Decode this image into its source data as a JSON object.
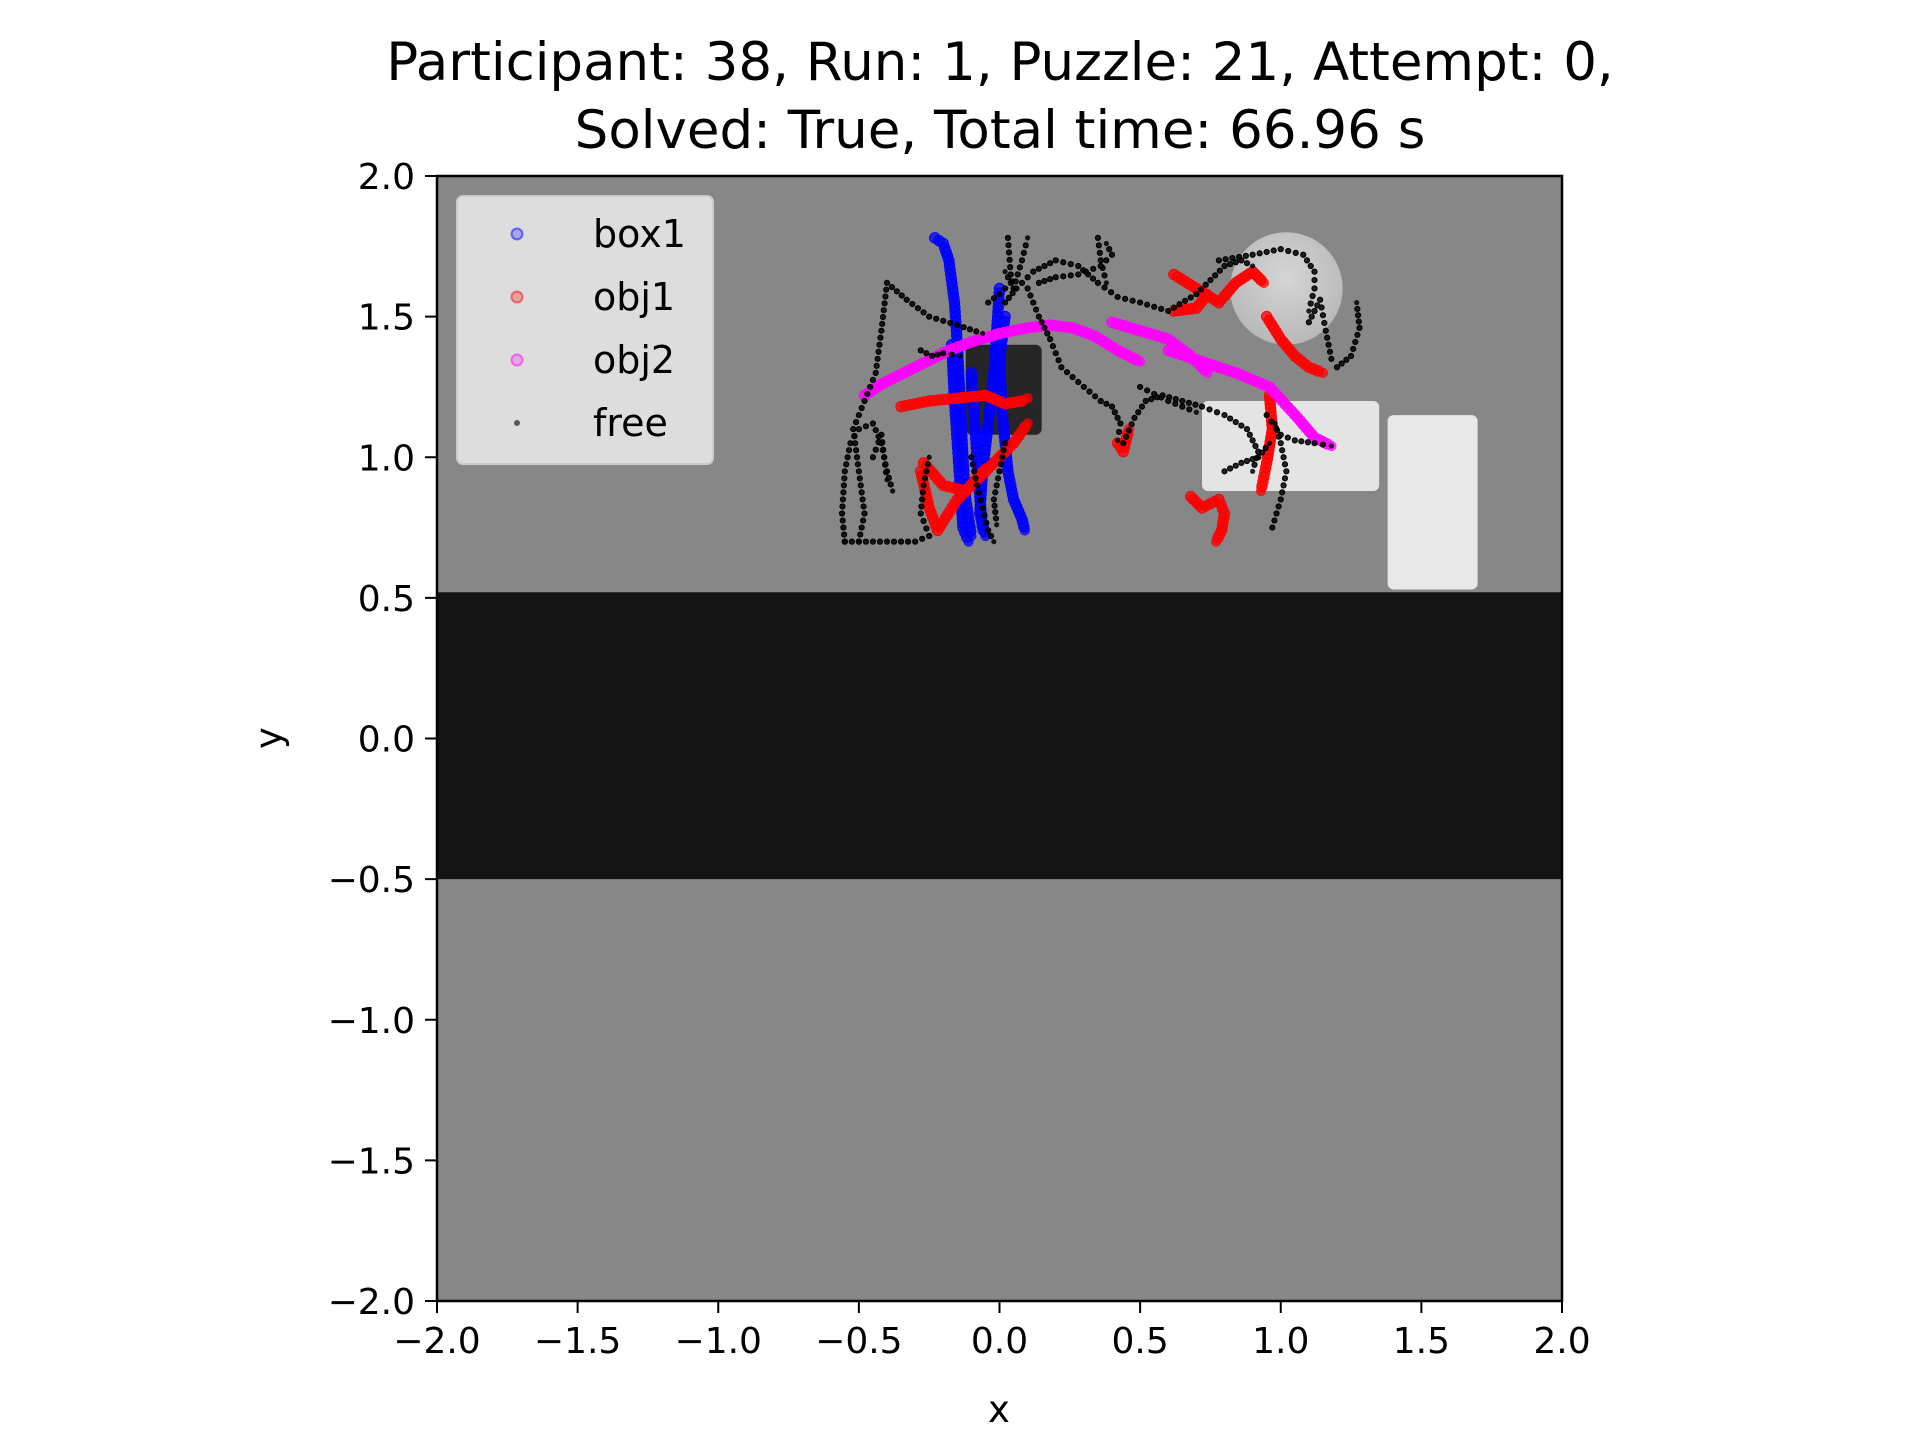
{
  "chart_data": {
    "type": "scatter",
    "title_lines": [
      "Participant: 38, Run: 1, Puzzle: 21, Attempt: 0,",
      "Solved: True, Total time: 66.96 s"
    ],
    "xlabel": "x",
    "ylabel": "y",
    "xlim": [
      -2.0,
      2.0
    ],
    "ylim": [
      -2.0,
      2.0
    ],
    "xticks": [
      "−2.0",
      "−1.5",
      "−1.0",
      "−0.5",
      "0.0",
      "0.5",
      "1.0",
      "1.5",
      "2.0"
    ],
    "yticks": [
      "2.0",
      "1.5",
      "1.0",
      "0.5",
      "0.0",
      "−0.5",
      "−1.0",
      "−1.5",
      "−2.0"
    ],
    "xtick_values": [
      -2.0,
      -1.5,
      -1.0,
      -0.5,
      0.0,
      0.5,
      1.0,
      1.5,
      2.0
    ],
    "ytick_values": [
      2.0,
      1.5,
      1.0,
      0.5,
      0.0,
      -0.5,
      -1.0,
      -1.5,
      -2.0
    ],
    "grid": false,
    "legend_position": "upper-left",
    "background": {
      "floor_color": "#878787",
      "table_band": {
        "y_range": [
          -0.5,
          0.52
        ],
        "color": "#131313"
      },
      "objects": [
        {
          "kind": "dark-box",
          "x_range": [
            -0.12,
            0.15
          ],
          "y_range": [
            1.08,
            1.4
          ],
          "color": "#262626"
        },
        {
          "kind": "light-box",
          "x_range": [
            0.72,
            1.35
          ],
          "y_range": [
            0.88,
            1.2
          ],
          "color": "#e4e4e4"
        },
        {
          "kind": "light-box",
          "x_range": [
            1.38,
            1.7
          ],
          "y_range": [
            0.53,
            1.15
          ],
          "color": "#e8e8e8"
        },
        {
          "kind": "light-disc",
          "center": [
            1.02,
            1.6
          ],
          "radius": 0.2,
          "color": "#cfcfcf"
        }
      ]
    },
    "series": [
      {
        "name": "box1",
        "color": "#0000ff",
        "marker": "circle",
        "paths": [
          [
            [
              -0.23,
              1.78
            ],
            [
              -0.2,
              1.76
            ],
            [
              -0.18,
              1.7
            ],
            [
              -0.16,
              1.55
            ],
            [
              -0.15,
              1.4
            ],
            [
              -0.14,
              1.2
            ],
            [
              -0.13,
              1.0
            ],
            [
              -0.12,
              0.85
            ],
            [
              -0.1,
              0.72
            ]
          ],
          [
            [
              -0.17,
              1.4
            ],
            [
              -0.16,
              1.2
            ],
            [
              -0.15,
              1.05
            ],
            [
              -0.14,
              0.9
            ],
            [
              -0.13,
              0.75
            ],
            [
              -0.11,
              0.7
            ]
          ],
          [
            [
              0.0,
              1.6
            ],
            [
              -0.01,
              1.45
            ],
            [
              -0.02,
              1.3
            ],
            [
              -0.04,
              1.12
            ],
            [
              -0.06,
              0.95
            ],
            [
              -0.07,
              0.8
            ],
            [
              -0.05,
              0.72
            ]
          ],
          [
            [
              0.02,
              1.5
            ],
            [
              0.0,
              1.35
            ],
            [
              0.01,
              1.15
            ],
            [
              0.03,
              0.95
            ],
            [
              0.05,
              0.85
            ],
            [
              0.08,
              0.78
            ],
            [
              0.09,
              0.74
            ]
          ],
          [
            [
              -0.1,
              1.3
            ],
            [
              -0.09,
              1.15
            ],
            [
              -0.08,
              1.0
            ],
            [
              -0.07,
              0.86
            ],
            [
              -0.06,
              0.74
            ]
          ]
        ]
      },
      {
        "name": "obj1",
        "color": "#ff0000",
        "marker": "circle",
        "paths": [
          [
            [
              -0.35,
              1.18
            ],
            [
              -0.25,
              1.2
            ],
            [
              -0.15,
              1.21
            ],
            [
              -0.05,
              1.22
            ],
            [
              0.02,
              1.19
            ],
            [
              0.08,
              1.2
            ],
            [
              0.1,
              1.21
            ]
          ],
          [
            [
              -0.28,
              0.95
            ],
            [
              -0.25,
              0.82
            ],
            [
              -0.22,
              0.74
            ],
            [
              -0.15,
              0.85
            ],
            [
              -0.05,
              0.95
            ],
            [
              0.05,
              1.05
            ],
            [
              0.1,
              1.12
            ]
          ],
          [
            [
              -0.27,
              0.98
            ],
            [
              -0.2,
              0.9
            ],
            [
              -0.12,
              0.88
            ],
            [
              -0.05,
              0.96
            ]
          ],
          [
            [
              0.42,
              1.05
            ],
            [
              0.44,
              1.02
            ],
            [
              0.46,
              1.1
            ]
          ],
          [
            [
              0.62,
              1.65
            ],
            [
              0.7,
              1.6
            ],
            [
              0.78,
              1.55
            ],
            [
              0.84,
              1.62
            ],
            [
              0.9,
              1.66
            ],
            [
              0.94,
              1.62
            ]
          ],
          [
            [
              0.62,
              1.52
            ],
            [
              0.7,
              1.53
            ],
            [
              0.74,
              1.58
            ]
          ],
          [
            [
              0.95,
              1.5
            ],
            [
              1.0,
              1.42
            ],
            [
              1.05,
              1.36
            ],
            [
              1.1,
              1.32
            ],
            [
              1.15,
              1.3
            ]
          ],
          [
            [
              0.96,
              1.22
            ],
            [
              0.97,
              1.1
            ],
            [
              0.95,
              0.98
            ],
            [
              0.93,
              0.88
            ]
          ],
          [
            [
              0.68,
              0.86
            ],
            [
              0.72,
              0.82
            ],
            [
              0.78,
              0.85
            ],
            [
              0.8,
              0.8
            ],
            [
              0.79,
              0.74
            ],
            [
              0.77,
              0.7
            ]
          ]
        ]
      },
      {
        "name": "obj2",
        "color": "#ff00ff",
        "marker": "circle",
        "paths": [
          [
            [
              -0.48,
              1.22
            ],
            [
              -0.42,
              1.26
            ],
            [
              -0.34,
              1.3
            ],
            [
              -0.26,
              1.34
            ],
            [
              -0.18,
              1.38
            ],
            [
              -0.1,
              1.41
            ],
            [
              0.0,
              1.44
            ],
            [
              0.1,
              1.46
            ],
            [
              0.18,
              1.47
            ],
            [
              0.26,
              1.46
            ],
            [
              0.34,
              1.43
            ],
            [
              0.42,
              1.38
            ],
            [
              0.5,
              1.34
            ]
          ],
          [
            [
              0.6,
              1.38
            ],
            [
              0.72,
              1.34
            ],
            [
              0.84,
              1.3
            ],
            [
              0.96,
              1.25
            ],
            [
              1.06,
              1.14
            ],
            [
              1.12,
              1.07
            ],
            [
              1.18,
              1.04
            ]
          ],
          [
            [
              0.4,
              1.48
            ],
            [
              0.5,
              1.45
            ],
            [
              0.6,
              1.42
            ],
            [
              0.68,
              1.36
            ],
            [
              0.74,
              1.3
            ]
          ]
        ]
      },
      {
        "name": "free",
        "color": "#000000",
        "marker": "dot",
        "paths": [
          [
            [
              -0.55,
              0.7
            ],
            [
              -0.5,
              0.7
            ],
            [
              -0.4,
              0.7
            ],
            [
              -0.3,
              0.7
            ],
            [
              -0.25,
              0.72
            ],
            [
              -0.28,
              0.8
            ],
            [
              -0.27,
              0.9
            ],
            [
              -0.25,
              1.0
            ]
          ],
          [
            [
              -0.55,
              0.7
            ],
            [
              -0.56,
              0.8
            ],
            [
              -0.55,
              0.95
            ],
            [
              -0.53,
              1.05
            ],
            [
              -0.5,
              1.1
            ],
            [
              -0.45,
              1.12
            ],
            [
              -0.42,
              1.05
            ],
            [
              -0.4,
              0.95
            ],
            [
              -0.38,
              0.88
            ]
          ],
          [
            [
              -0.5,
              0.7
            ],
            [
              -0.48,
              0.8
            ],
            [
              -0.5,
              0.95
            ],
            [
              -0.52,
              1.1
            ],
            [
              -0.48,
              1.2
            ],
            [
              -0.44,
              1.3
            ],
            [
              -0.42,
              1.45
            ],
            [
              -0.4,
              1.62
            ],
            [
              -0.33,
              1.56
            ],
            [
              -0.25,
              1.5
            ],
            [
              -0.15,
              1.47
            ],
            [
              -0.06,
              1.44
            ]
          ],
          [
            [
              -0.45,
              1.0
            ],
            [
              -0.42,
              1.08
            ],
            [
              -0.41,
              1.0
            ],
            [
              -0.4,
              0.92
            ]
          ],
          [
            [
              -0.28,
              1.38
            ],
            [
              -0.24,
              1.36
            ],
            [
              -0.2,
              1.37
            ],
            [
              -0.14,
              1.36
            ]
          ],
          [
            [
              0.02,
              1.55
            ],
            [
              0.06,
              1.6
            ],
            [
              0.12,
              1.66
            ],
            [
              0.2,
              1.7
            ],
            [
              0.28,
              1.68
            ],
            [
              0.35,
              1.62
            ],
            [
              0.42,
              1.57
            ],
            [
              0.5,
              1.55
            ],
            [
              0.6,
              1.52
            ],
            [
              0.7,
              1.58
            ],
            [
              0.8,
              1.68
            ],
            [
              0.86,
              1.7
            ],
            [
              0.9,
              1.68
            ]
          ],
          [
            [
              0.03,
              1.78
            ],
            [
              0.04,
              1.65
            ],
            [
              0.05,
              1.6
            ],
            [
              0.08,
              1.7
            ],
            [
              0.1,
              1.78
            ]
          ],
          [
            [
              0.14,
              1.62
            ],
            [
              0.2,
              1.64
            ],
            [
              0.28,
              1.65
            ],
            [
              0.36,
              1.68
            ],
            [
              0.4,
              1.72
            ],
            [
              0.38,
              1.76
            ]
          ],
          [
            [
              0.1,
              1.6
            ],
            [
              0.14,
              1.5
            ],
            [
              0.18,
              1.42
            ],
            [
              0.22,
              1.32
            ],
            [
              0.3,
              1.25
            ],
            [
              0.36,
              1.2
            ],
            [
              0.4,
              1.18
            ],
            [
              0.43,
              1.12
            ],
            [
              0.42,
              1.06
            ]
          ],
          [
            [
              0.44,
              1.05
            ],
            [
              0.48,
              1.14
            ],
            [
              0.52,
              1.2
            ],
            [
              0.58,
              1.22
            ],
            [
              0.65,
              1.2
            ],
            [
              0.72,
              1.18
            ],
            [
              0.8,
              1.15
            ],
            [
              0.88,
              1.1
            ],
            [
              0.92,
              1.02
            ],
            [
              0.9,
              0.95
            ]
          ],
          [
            [
              0.8,
              0.95
            ],
            [
              0.86,
              0.98
            ],
            [
              0.92,
              1.0
            ],
            [
              0.96,
              1.05
            ]
          ],
          [
            [
              0.95,
              1.15
            ],
            [
              1.0,
              1.08
            ],
            [
              1.05,
              1.06
            ],
            [
              1.12,
              1.05
            ],
            [
              1.18,
              1.04
            ]
          ],
          [
            [
              0.97,
              0.75
            ],
            [
              1.0,
              0.85
            ],
            [
              1.02,
              0.95
            ],
            [
              1.0,
              1.05
            ],
            [
              0.98,
              1.12
            ]
          ],
          [
            [
              1.1,
              1.48
            ],
            [
              1.12,
              1.52
            ],
            [
              1.14,
              1.56
            ],
            [
              1.16,
              1.45
            ],
            [
              1.18,
              1.35
            ],
            [
              1.2,
              1.32
            ],
            [
              1.25,
              1.36
            ],
            [
              1.28,
              1.46
            ],
            [
              1.27,
              1.55
            ]
          ],
          [
            [
              0.78,
              1.7
            ],
            [
              0.9,
              1.72
            ],
            [
              1.0,
              1.74
            ],
            [
              1.08,
              1.72
            ],
            [
              1.12,
              1.66
            ],
            [
              1.12,
              1.6
            ],
            [
              1.1,
              1.52
            ]
          ],
          [
            [
              -0.1,
              1.0
            ],
            [
              -0.08,
              0.9
            ],
            [
              -0.06,
              0.82
            ],
            [
              -0.04,
              0.74
            ],
            [
              -0.02,
              0.7
            ]
          ],
          [
            [
              0.02,
              1.05
            ],
            [
              0.0,
              0.95
            ],
            [
              -0.02,
              0.85
            ],
            [
              -0.01,
              0.76
            ]
          ],
          [
            [
              -0.04,
              1.55
            ],
            [
              0.0,
              1.58
            ],
            [
              0.04,
              1.62
            ],
            [
              0.02,
              1.66
            ]
          ],
          [
            [
              0.35,
              1.78
            ],
            [
              0.36,
              1.7
            ],
            [
              0.38,
              1.62
            ]
          ],
          [
            [
              0.5,
              1.25
            ],
            [
              0.6,
              1.2
            ],
            [
              0.7,
              1.16
            ]
          ]
        ]
      }
    ],
    "legend": [
      {
        "name": "box1",
        "color": "#0000ff"
      },
      {
        "name": "obj1",
        "color": "#ff0000"
      },
      {
        "name": "obj2",
        "color": "#ff00ff"
      },
      {
        "name": "free",
        "color": "#000000"
      }
    ]
  }
}
